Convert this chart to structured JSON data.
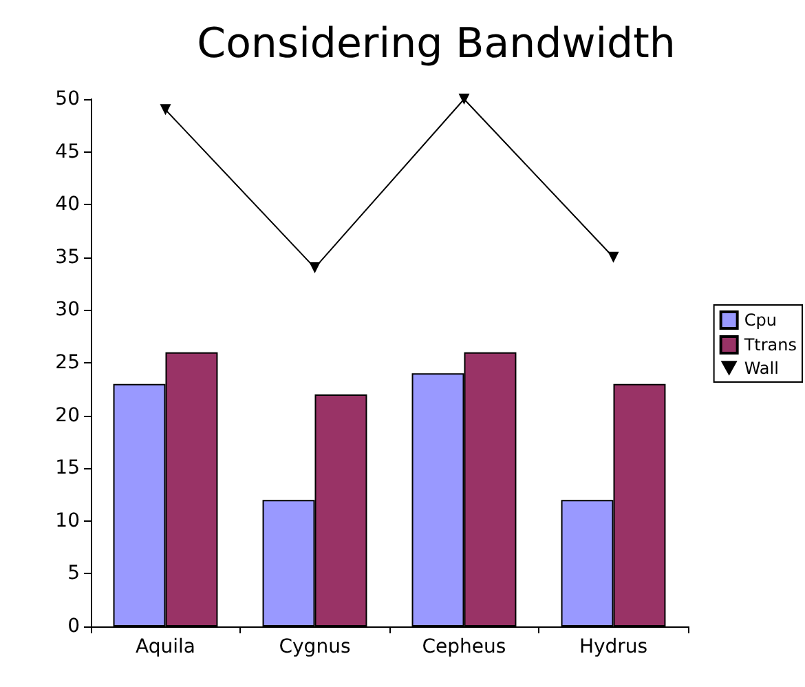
{
  "chart_data": {
    "type": "bar",
    "title": "Considering Bandwidth",
    "categories": [
      "Aquila",
      "Cygnus",
      "Cepheus",
      "Hydrus"
    ],
    "series": [
      {
        "name": "Cpu",
        "color": "#9999ff",
        "values": [
          23,
          12,
          24,
          12
        ]
      },
      {
        "name": "Ttrans",
        "color": "#993366",
        "values": [
          26,
          22,
          26,
          23
        ]
      },
      {
        "name": "Wall",
        "type": "line",
        "color": "#000000",
        "values": [
          49,
          34,
          50,
          35
        ]
      }
    ],
    "ylim": [
      0,
      50
    ],
    "yticks": [
      0,
      5,
      10,
      15,
      20,
      25,
      30,
      35,
      40,
      45,
      50
    ],
    "grid": false,
    "legend": "right",
    "marker": "triangle",
    "line_style": "solid"
  }
}
